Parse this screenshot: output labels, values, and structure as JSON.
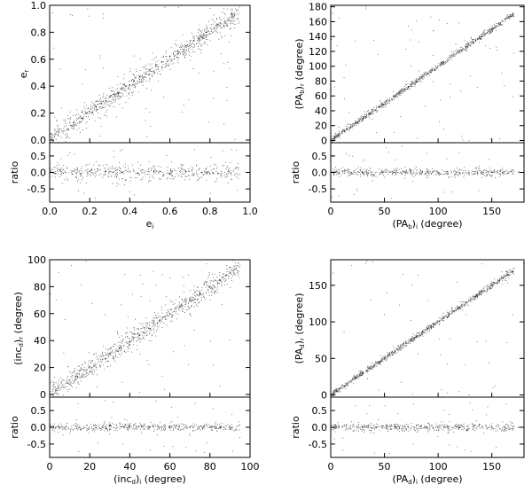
{
  "chart_data": [
    {
      "type": "scatter",
      "xlabel": "e",
      "xlabel_sub": "i",
      "ylabel": "e",
      "ylabel_sub": "r",
      "ratio_label": "ratio",
      "xlim": [
        0,
        1
      ],
      "ylim": [
        -0.02,
        1.0
      ],
      "rlim": [
        -0.9,
        0.9
      ],
      "xticks": [
        0.0,
        0.2,
        0.4,
        0.6,
        0.8,
        1.0
      ],
      "xtick_labels": [
        "0.0",
        "0.2",
        "0.4",
        "0.6",
        "0.8",
        "1.0"
      ],
      "yticks": [
        0.0,
        0.2,
        0.4,
        0.6,
        0.8,
        1.0
      ],
      "ytick_labels": [
        "0.0",
        "0.2",
        "0.4",
        "0.6",
        "0.8",
        "1.0"
      ],
      "rticks": [
        -0.5,
        0.0,
        0.5
      ],
      "rtick_labels": [
        "-0.5",
        "0.0",
        "0.5"
      ],
      "points": [
        [
          0.12,
          0.13
        ],
        [
          0.18,
          0.2
        ],
        [
          0.2,
          0.21
        ],
        [
          0.23,
          0.25
        ],
        [
          0.26,
          0.27
        ],
        [
          0.28,
          0.29
        ],
        [
          0.3,
          0.32
        ],
        [
          0.32,
          0.34
        ],
        [
          0.34,
          0.35
        ],
        [
          0.36,
          0.38
        ],
        [
          0.38,
          0.4
        ],
        [
          0.4,
          0.41
        ],
        [
          0.42,
          0.44
        ],
        [
          0.45,
          0.47
        ],
        [
          0.48,
          0.49
        ],
        [
          0.5,
          0.52
        ],
        [
          0.53,
          0.55
        ],
        [
          0.56,
          0.58
        ],
        [
          0.6,
          0.62
        ],
        [
          0.64,
          0.66
        ],
        [
          0.68,
          0.7
        ],
        [
          0.72,
          0.74
        ],
        [
          0.78,
          0.8
        ],
        [
          0.84,
          0.86
        ]
      ],
      "ratio_points": [
        [
          0.12,
          0.04
        ],
        [
          0.2,
          0.03
        ],
        [
          0.28,
          0.02
        ],
        [
          0.36,
          0.0
        ],
        [
          0.44,
          -0.02
        ],
        [
          0.52,
          0.03
        ],
        [
          0.6,
          -0.04
        ],
        [
          0.68,
          0.02
        ],
        [
          0.76,
          0.0
        ],
        [
          0.84,
          -0.03
        ]
      ]
    },
    {
      "type": "scatter",
      "xlabel": "(PA",
      "xlabel_sub": "b",
      "xlabel_suffix": ")",
      "xlabel_sub2": "i",
      "xlabel_tail": " (degree)",
      "ylabel": "(PA",
      "ylabel_sub": "b",
      "ylabel_suffix": ")",
      "ylabel_sub2": "r",
      "ylabel_tail": " (degree)",
      "ratio_label": "ratio",
      "xlim": [
        0,
        180
      ],
      "ylim": [
        -3,
        182
      ],
      "rlim": [
        -0.9,
        0.9
      ],
      "xticks": [
        0,
        50,
        100,
        150
      ],
      "xtick_labels": [
        "0",
        "50",
        "100",
        "150"
      ],
      "yticks": [
        0,
        20,
        40,
        60,
        80,
        100,
        120,
        140,
        160,
        180
      ],
      "ytick_labels": [
        "0",
        "20",
        "40",
        "60",
        "80",
        "100",
        "120",
        "140",
        "160",
        "180"
      ],
      "rticks": [
        -0.5,
        0.0,
        0.5
      ],
      "rtick_labels": [
        "-0.5",
        "0.0",
        "0.5"
      ],
      "points": [
        [
          0,
          0
        ],
        [
          15,
          15
        ],
        [
          30,
          30
        ],
        [
          45,
          45
        ],
        [
          60,
          60
        ],
        [
          75,
          75
        ],
        [
          90,
          90
        ],
        [
          105,
          105
        ],
        [
          120,
          120
        ],
        [
          135,
          135
        ],
        [
          150,
          150
        ],
        [
          165,
          165
        ],
        [
          180,
          180
        ]
      ],
      "ratio_points": [
        [
          5,
          0.02
        ],
        [
          30,
          -0.01
        ],
        [
          60,
          0.0
        ],
        [
          90,
          0.01
        ],
        [
          120,
          -0.01
        ],
        [
          150,
          0.0
        ],
        [
          175,
          0.01
        ]
      ]
    },
    {
      "type": "scatter",
      "xlabel": "(inc",
      "xlabel_sub": "d",
      "xlabel_suffix": ")",
      "xlabel_sub2": "i",
      "xlabel_tail": " (degree)",
      "ylabel": "(inc",
      "ylabel_sub": "d",
      "ylabel_suffix": ")",
      "ylabel_sub2": "r",
      "ylabel_tail": " (degree)",
      "ratio_label": "ratio",
      "xlim": [
        0,
        100
      ],
      "ylim": [
        -2,
        100
      ],
      "rlim": [
        -0.9,
        0.9
      ],
      "xticks": [
        0,
        20,
        40,
        60,
        80,
        100
      ],
      "xtick_labels": [
        "0",
        "20",
        "40",
        "60",
        "80",
        "100"
      ],
      "yticks": [
        0,
        20,
        40,
        60,
        80,
        100
      ],
      "ytick_labels": [
        "0",
        "20",
        "40",
        "60",
        "80",
        "100"
      ],
      "rticks": [
        -0.5,
        0.0,
        0.5
      ],
      "rtick_labels": [
        "-0.5",
        "0.0",
        "0.5"
      ],
      "points": [
        [
          30,
          30
        ],
        [
          35,
          34
        ],
        [
          40,
          39
        ],
        [
          45,
          44
        ],
        [
          50,
          49
        ],
        [
          55,
          55
        ],
        [
          60,
          60
        ],
        [
          65,
          65
        ],
        [
          70,
          70
        ],
        [
          75,
          75
        ],
        [
          80,
          80
        ],
        [
          85,
          85
        ]
      ],
      "ratio_points": [
        [
          30,
          0.05
        ],
        [
          40,
          0.02
        ],
        [
          50,
          0.0
        ],
        [
          60,
          -0.01
        ],
        [
          70,
          0.0
        ],
        [
          80,
          0.0
        ],
        [
          85,
          0.0
        ]
      ]
    },
    {
      "type": "scatter",
      "xlabel": "(PA",
      "xlabel_sub": "d",
      "xlabel_suffix": ")",
      "xlabel_sub2": "i",
      "xlabel_tail": " (degree)",
      "ylabel": "(PA",
      "ylabel_sub": "d",
      "ylabel_suffix": ")",
      "ylabel_sub2": "r",
      "ylabel_tail": " (degree)",
      "ratio_label": "ratio",
      "xlim": [
        0,
        180
      ],
      "ylim": [
        -3,
        185
      ],
      "rlim": [
        -0.9,
        0.9
      ],
      "xticks": [
        0,
        50,
        100,
        150
      ],
      "xtick_labels": [
        "0",
        "50",
        "100",
        "150"
      ],
      "yticks": [
        0,
        50,
        100,
        150
      ],
      "ytick_labels": [
        "0",
        "50",
        "100",
        "150"
      ],
      "rticks": [
        -0.5,
        0.0,
        0.5
      ],
      "rtick_labels": [
        "-0.5",
        "0.0",
        "0.5"
      ],
      "points": [
        [
          0,
          0
        ],
        [
          15,
          15
        ],
        [
          30,
          30
        ],
        [
          45,
          45
        ],
        [
          60,
          60
        ],
        [
          75,
          75
        ],
        [
          90,
          90
        ],
        [
          105,
          105
        ],
        [
          120,
          120
        ],
        [
          135,
          135
        ],
        [
          150,
          150
        ],
        [
          165,
          165
        ],
        [
          180,
          180
        ]
      ],
      "ratio_points": [
        [
          5,
          0.02
        ],
        [
          30,
          0.0
        ],
        [
          60,
          0.01
        ],
        [
          90,
          0.0
        ],
        [
          120,
          -0.01
        ],
        [
          150,
          0.0
        ],
        [
          175,
          0.0
        ]
      ]
    }
  ]
}
